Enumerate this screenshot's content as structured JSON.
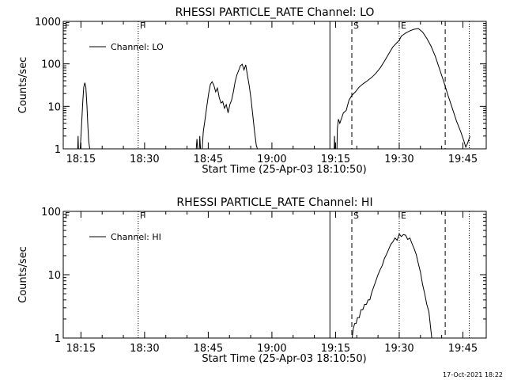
{
  "chart_data": [
    {
      "type": "line",
      "title": "RHESSI  PARTICLE_RATE Channel: LO",
      "xlabel": "Start Time (25-Apr-03 18:10:50)",
      "ylabel": "Counts/sec",
      "yscale": "log",
      "xlim": [
        "18:10:50",
        "19:50:30"
      ],
      "ylim": [
        1,
        1000
      ],
      "x_ticks": [
        "18:15",
        "18:30",
        "18:45",
        "19:00",
        "19:15",
        "19:30",
        "19:45"
      ],
      "y_ticks": [
        "1",
        "10",
        "100",
        "1000"
      ],
      "legend": {
        "placement": "top-left",
        "entries": [
          "Channel: LO"
        ]
      },
      "markers": [
        {
          "label": "F",
          "time": "18:10:50",
          "style": "none"
        },
        {
          "label": "F",
          "time": "18:28:30",
          "style": "dotted"
        },
        {
          "label": "",
          "time": "19:13:40",
          "style": "solid"
        },
        {
          "label": "S",
          "time": "19:18:50",
          "style": "dashed"
        },
        {
          "label": "E",
          "time": "19:30:00",
          "style": "dotted"
        },
        {
          "label": "",
          "time": "19:40:50",
          "style": "dashed"
        },
        {
          "label": "",
          "time": "19:46:30",
          "style": "dotted"
        }
      ],
      "series": [
        {
          "name": "Channel: LO",
          "segments": [
            [
              [
                "18:14:15",
                1
              ],
              [
                "18:14:20",
                2
              ],
              [
                "18:14:25",
                1
              ]
            ],
            [
              [
                "18:14:50",
                1
              ],
              [
                "18:15:10",
                4
              ],
              [
                "18:15:25",
                12
              ],
              [
                "18:15:40",
                28
              ],
              [
                "18:15:55",
                36
              ],
              [
                "18:16:10",
                28
              ],
              [
                "18:16:25",
                10
              ],
              [
                "18:16:40",
                3
              ],
              [
                "18:16:50",
                1.5
              ],
              [
                "18:17:05",
                1
              ]
            ],
            [
              [
                "18:42:10",
                1
              ],
              [
                "18:42:20",
                1.7
              ],
              [
                "18:42:30",
                1
              ]
            ],
            [
              [
                "18:42:55",
                1
              ],
              [
                "18:43:00",
                2
              ],
              [
                "18:43:10",
                1
              ]
            ],
            [
              [
                "18:43:35",
                1
              ],
              [
                "18:43:50",
                2.5
              ],
              [
                "18:44:15",
                5
              ],
              [
                "18:44:40",
                10
              ],
              [
                "18:45:05",
                20
              ],
              [
                "18:45:30",
                33
              ],
              [
                "18:45:55",
                38
              ],
              [
                "18:46:20",
                31
              ],
              [
                "18:46:45",
                22
              ],
              [
                "18:47:10",
                27
              ],
              [
                "18:47:35",
                16
              ],
              [
                "18:48:00",
                12
              ],
              [
                "18:48:25",
                13
              ],
              [
                "18:48:50",
                9
              ],
              [
                "18:49:15",
                11
              ],
              [
                "18:49:40",
                7
              ],
              [
                "18:50:05",
                11
              ],
              [
                "18:50:30",
                14
              ],
              [
                "18:50:55",
                22
              ],
              [
                "18:51:20",
                38
              ],
              [
                "18:51:45",
                55
              ],
              [
                "18:52:10",
                70
              ],
              [
                "18:52:35",
                90
              ],
              [
                "18:53:00",
                98
              ],
              [
                "18:53:25",
                72
              ],
              [
                "18:53:50",
                95
              ],
              [
                "18:54:15",
                52
              ],
              [
                "18:54:40",
                30
              ],
              [
                "18:55:05",
                15
              ],
              [
                "18:55:30",
                6
              ],
              [
                "18:55:55",
                2.5
              ],
              [
                "18:56:20",
                1.2
              ],
              [
                "18:56:35",
                1
              ]
            ],
            [
              [
                "19:14:40",
                1
              ],
              [
                "19:14:45",
                2
              ],
              [
                "19:14:50",
                1
              ]
            ],
            [
              [
                "19:15:20",
                1
              ],
              [
                "19:15:25",
                3
              ],
              [
                "19:15:40",
                5
              ],
              [
                "19:16:00",
                4
              ],
              [
                "19:16:20",
                5
              ],
              [
                "19:16:50",
                7
              ],
              [
                "19:17:30",
                8
              ],
              [
                "19:18:10",
                14
              ],
              [
                "19:18:50",
                18
              ],
              [
                "19:19:40",
                22
              ],
              [
                "19:20:30",
                28
              ],
              [
                "19:21:30",
                34
              ],
              [
                "19:22:30",
                40
              ],
              [
                "19:23:30",
                48
              ],
              [
                "19:24:30",
                60
              ],
              [
                "19:25:30",
                80
              ],
              [
                "19:26:30",
                115
              ],
              [
                "19:27:30",
                170
              ],
              [
                "19:28:30",
                250
              ],
              [
                "19:29:30",
                320
              ],
              [
                "19:30:00",
                360
              ],
              [
                "19:30:30",
                450
              ],
              [
                "19:31:30",
                530
              ],
              [
                "19:32:30",
                600
              ],
              [
                "19:33:30",
                650
              ],
              [
                "19:34:30",
                680
              ],
              [
                "19:35:30",
                560
              ],
              [
                "19:36:30",
                400
              ],
              [
                "19:37:30",
                260
              ],
              [
                "19:38:30",
                150
              ],
              [
                "19:39:30",
                75
              ],
              [
                "19:40:30",
                38
              ],
              [
                "19:41:30",
                18
              ],
              [
                "19:42:30",
                9
              ],
              [
                "19:43:30",
                4.5
              ],
              [
                "19:44:30",
                2.5
              ],
              [
                "19:45:10",
                1.6
              ],
              [
                "19:45:40",
                1.1
              ],
              [
                "19:46:10",
                1.4
              ],
              [
                "19:46:40",
                2
              ]
            ]
          ]
        }
      ]
    },
    {
      "type": "line",
      "title": "RHESSI  PARTICLE_RATE Channel: HI",
      "xlabel": "Start Time (25-Apr-03 18:10:50)",
      "ylabel": "Counts/sec",
      "yscale": "log",
      "xlim": [
        "18:10:50",
        "19:50:30"
      ],
      "ylim": [
        1,
        100
      ],
      "x_ticks": [
        "18:15",
        "18:30",
        "18:45",
        "19:00",
        "19:15",
        "19:30",
        "19:45"
      ],
      "y_ticks": [
        "1",
        "10",
        "100"
      ],
      "legend": {
        "placement": "top-left",
        "entries": [
          "Channel: HI"
        ]
      },
      "markers": [
        {
          "label": "F",
          "time": "18:10:50",
          "style": "none"
        },
        {
          "label": "F",
          "time": "18:28:30",
          "style": "dotted"
        },
        {
          "label": "",
          "time": "19:13:40",
          "style": "solid"
        },
        {
          "label": "S",
          "time": "19:18:50",
          "style": "dashed"
        },
        {
          "label": "E",
          "time": "19:30:00",
          "style": "dotted"
        },
        {
          "label": "",
          "time": "19:40:50",
          "style": "dashed"
        },
        {
          "label": "",
          "time": "19:46:30",
          "style": "dotted"
        }
      ],
      "series": [
        {
          "name": "Channel: HI",
          "segments": [
            [
              [
                "19:18:55",
                1
              ],
              [
                "19:19:10",
                1.4
              ],
              [
                "19:19:30",
                1.7
              ],
              [
                "19:19:50",
                1.7
              ],
              [
                "19:20:10",
                2.1
              ],
              [
                "19:20:35",
                2.1
              ],
              [
                "19:21:00",
                2.8
              ],
              [
                "19:21:25",
                2.8
              ],
              [
                "19:21:50",
                3.4
              ],
              [
                "19:22:15",
                3.4
              ],
              [
                "19:22:40",
                4.0
              ],
              [
                "19:23:05",
                4.0
              ],
              [
                "19:23:30",
                5.2
              ],
              [
                "19:24:00",
                6.5
              ],
              [
                "19:24:30",
                8
              ],
              [
                "19:25:00",
                10
              ],
              [
                "19:25:30",
                12
              ],
              [
                "19:26:00",
                14
              ],
              [
                "19:26:30",
                18
              ],
              [
                "19:27:00",
                21
              ],
              [
                "19:27:30",
                25
              ],
              [
                "19:28:00",
                30
              ],
              [
                "19:28:30",
                33
              ],
              [
                "19:29:00",
                38
              ],
              [
                "19:29:30",
                35
              ],
              [
                "19:30:00",
                44
              ],
              [
                "19:30:30",
                40
              ],
              [
                "19:31:00",
                43
              ],
              [
                "19:31:30",
                42
              ],
              [
                "19:32:00",
                36
              ],
              [
                "19:32:30",
                38
              ],
              [
                "19:33:00",
                31
              ],
              [
                "19:33:30",
                26
              ],
              [
                "19:34:00",
                21
              ],
              [
                "19:34:30",
                15
              ],
              [
                "19:35:00",
                11
              ],
              [
                "19:35:30",
                7
              ],
              [
                "19:36:00",
                5
              ],
              [
                "19:36:30",
                3.4
              ],
              [
                "19:37:00",
                2.6
              ],
              [
                "19:37:20",
                1.6
              ],
              [
                "19:37:40",
                1
              ]
            ]
          ]
        }
      ]
    }
  ],
  "footer": {
    "timestamp": "17-Oct-2021 18:22"
  }
}
